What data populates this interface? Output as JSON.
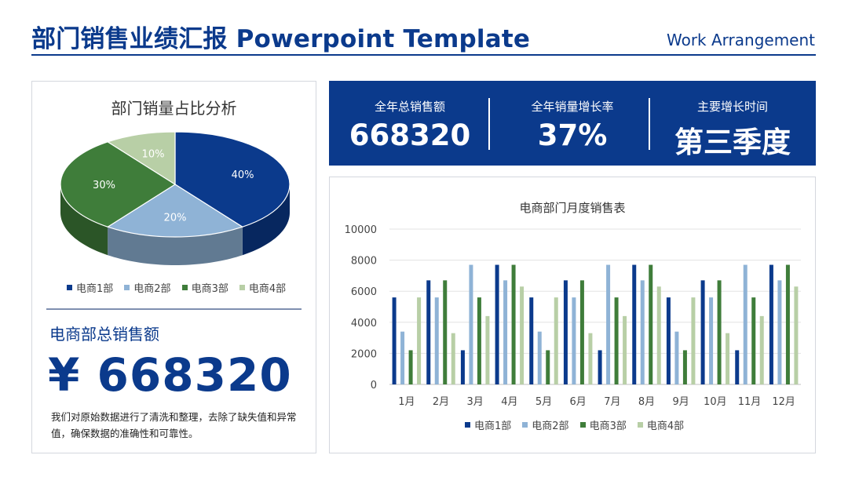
{
  "header": {
    "title": "部门销售业绩汇报 Powerpoint Template",
    "subtitle": "Work Arrangement"
  },
  "colors": {
    "brand": "#0b3a8c",
    "series": [
      "#0b3a8c",
      "#8fb3d6",
      "#3f7d3a",
      "#b8cfa6"
    ]
  },
  "pie_panel": {
    "title": "部门销量占比分析"
  },
  "summary": {
    "label": "电商部总销售额",
    "value": "¥ 668320",
    "description": "我们对原始数据进行了清洗和整理，去除了缺失值和异常值，确保数据的准确性和可靠性。"
  },
  "kpis": [
    {
      "label": "全年总销售额",
      "value": "668320"
    },
    {
      "label": "全年销量增长率",
      "value": "37%"
    },
    {
      "label": "主要增长时间",
      "value": "第三季度"
    }
  ],
  "bar_panel": {
    "title": "电商部门月度销售表"
  },
  "chart_data": [
    {
      "type": "pie",
      "title": "部门销量占比分析",
      "categories": [
        "电商1部",
        "电商2部",
        "电商3部",
        "电商4部"
      ],
      "values": [
        40,
        20,
        30,
        10
      ],
      "labels": [
        "40%",
        "20%",
        "30%",
        "10%"
      ],
      "style": "3d",
      "legend": "bottom"
    },
    {
      "type": "bar",
      "title": "电商部门月度销售表",
      "categories": [
        "1月",
        "2月",
        "3月",
        "4月",
        "5月",
        "6月",
        "7月",
        "8月",
        "9月",
        "10月",
        "11月",
        "12月"
      ],
      "series": [
        {
          "name": "电商1部",
          "values": [
            5600,
            6700,
            2200,
            7700,
            5600,
            6700,
            2200,
            7700,
            5600,
            6700,
            2200,
            7700
          ]
        },
        {
          "name": "电商2部",
          "values": [
            3400,
            5600,
            7700,
            6700,
            3400,
            5600,
            7700,
            6700,
            3400,
            5600,
            7700,
            6700
          ]
        },
        {
          "name": "电商3部",
          "values": [
            2200,
            6700,
            5600,
            7700,
            2200,
            6700,
            5600,
            7700,
            2200,
            6700,
            5600,
            7700
          ]
        },
        {
          "name": "电商4部",
          "values": [
            5600,
            3300,
            4400,
            6300,
            5600,
            3300,
            4400,
            6300,
            5600,
            3300,
            4400,
            6300
          ]
        }
      ],
      "ylim": [
        0,
        10000
      ],
      "yticks": [
        0,
        2000,
        4000,
        6000,
        8000,
        10000
      ],
      "grid": true,
      "legend": "bottom"
    }
  ]
}
